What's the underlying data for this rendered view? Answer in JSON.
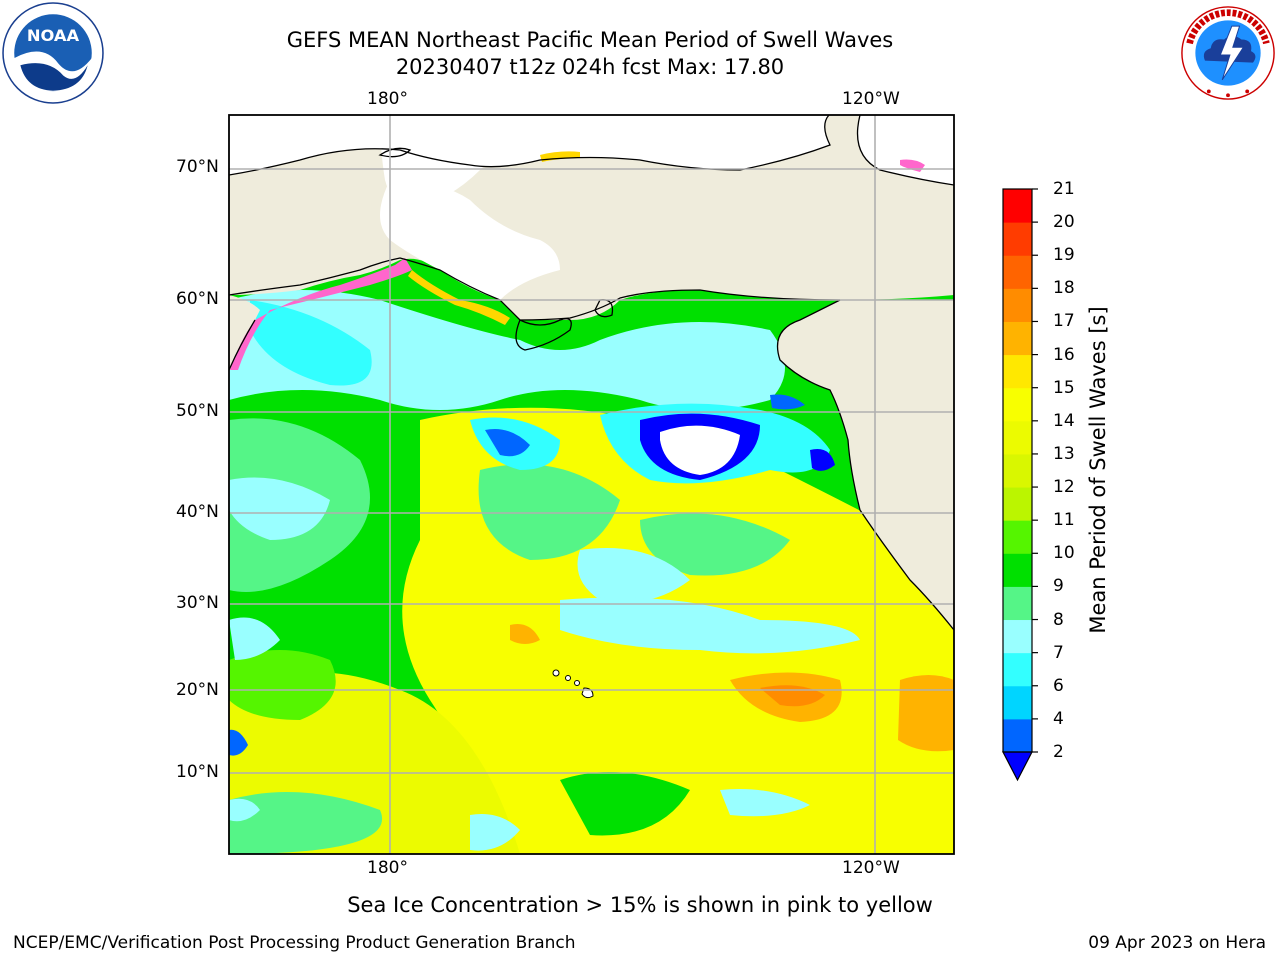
{
  "title": {
    "line1": "GEFS MEAN Northeast Pacific Mean Period of Swell Waves",
    "line2": "20230407 t12z 024h fcst   Max: 17.80"
  },
  "logos": {
    "left": "noaa-logo",
    "left_text": "NOAA",
    "left_ring_text": "NATIONAL OCEANIC AND ATMOSPHERIC ADMINISTRATION · U.S. DEPARTMENT OF COMMERCE",
    "right": "nws-logo",
    "right_ring_text": "NATIONAL WEATHER SERVICE"
  },
  "map": {
    "lon_labels_top": [
      "180°",
      "120°W"
    ],
    "lon_labels_bottom": [
      "180°",
      "120°W"
    ],
    "lat_labels": [
      "70°N",
      "60°N",
      "50°N",
      "40°N",
      "30°N",
      "20°N",
      "10°N"
    ],
    "land_color": "#efecdc",
    "grid_color": "#b0b0b0",
    "ice_colors": [
      "#ff66cc",
      "#ffd700"
    ]
  },
  "colorbar": {
    "label": "Mean Period of Swell Waves [s]",
    "ticks": [
      "2",
      "4",
      "6",
      "7",
      "8",
      "9",
      "10",
      "11",
      "12",
      "13",
      "14",
      "15",
      "16",
      "17",
      "18",
      "19",
      "20",
      "21"
    ],
    "colors": [
      "#0066ff",
      "#00d5ff",
      "#33ffff",
      "#99ffff",
      "#55f587",
      "#00e000",
      "#55f500",
      "#bbf500",
      "#d9f700",
      "#ecfb00",
      "#f8ff00",
      "#ffe800",
      "#ffb300",
      "#ff8c00",
      "#ff6400",
      "#ff3c00",
      "#ff0000"
    ],
    "extend_color": "#0000ff"
  },
  "caption": "Sea Ice Concentration > 15% is shown in pink to yellow",
  "credit_left": "NCEP/EMC/Verification Post Processing Product Generation Branch",
  "credit_right": "09 Apr 2023 on Hera"
}
